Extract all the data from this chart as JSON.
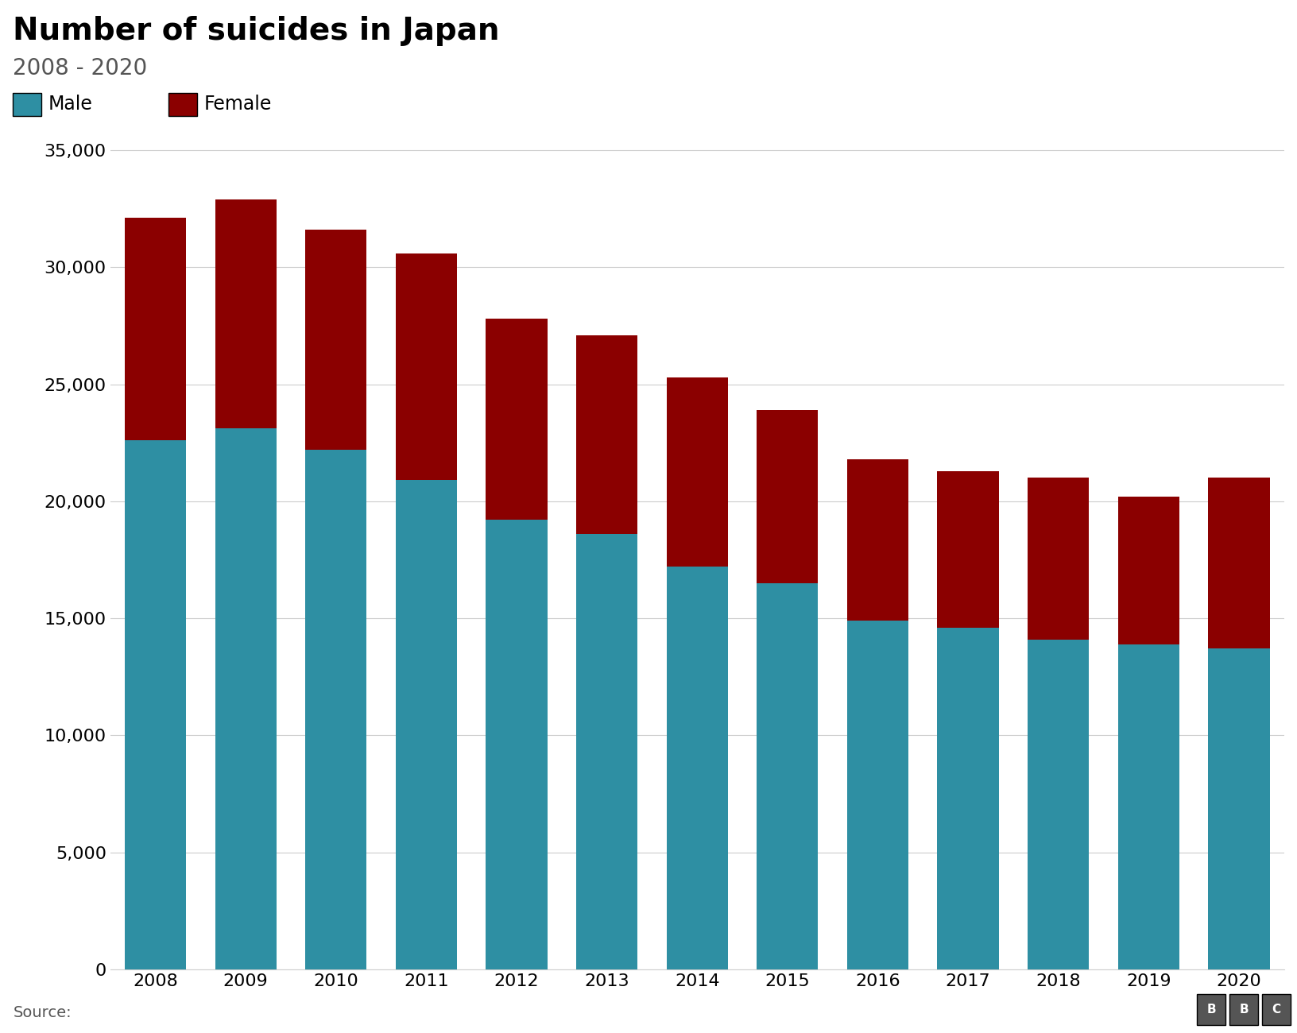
{
  "title": "Number of suicides in Japan",
  "subtitle": "2008 - 2020",
  "years": [
    2008,
    2009,
    2010,
    2011,
    2012,
    2013,
    2014,
    2015,
    2016,
    2017,
    2018,
    2019,
    2020
  ],
  "male": [
    22600,
    23100,
    22200,
    20900,
    19200,
    18600,
    17200,
    16500,
    14900,
    14600,
    14100,
    13900,
    13700
  ],
  "female": [
    9500,
    9800,
    9400,
    9700,
    8600,
    8500,
    8100,
    7400,
    6900,
    6700,
    6900,
    6300,
    7300
  ],
  "male_color": "#2e8fa3",
  "female_color": "#8b0000",
  "ylim": [
    0,
    37000
  ],
  "yticks": [
    0,
    5000,
    10000,
    15000,
    20000,
    25000,
    30000,
    35000
  ],
  "source_text": "Source:",
  "bbc_text": "BBC",
  "background_color": "#ffffff",
  "title_fontsize": 28,
  "subtitle_fontsize": 20,
  "legend_fontsize": 17,
  "tick_fontsize": 16,
  "source_fontsize": 14
}
